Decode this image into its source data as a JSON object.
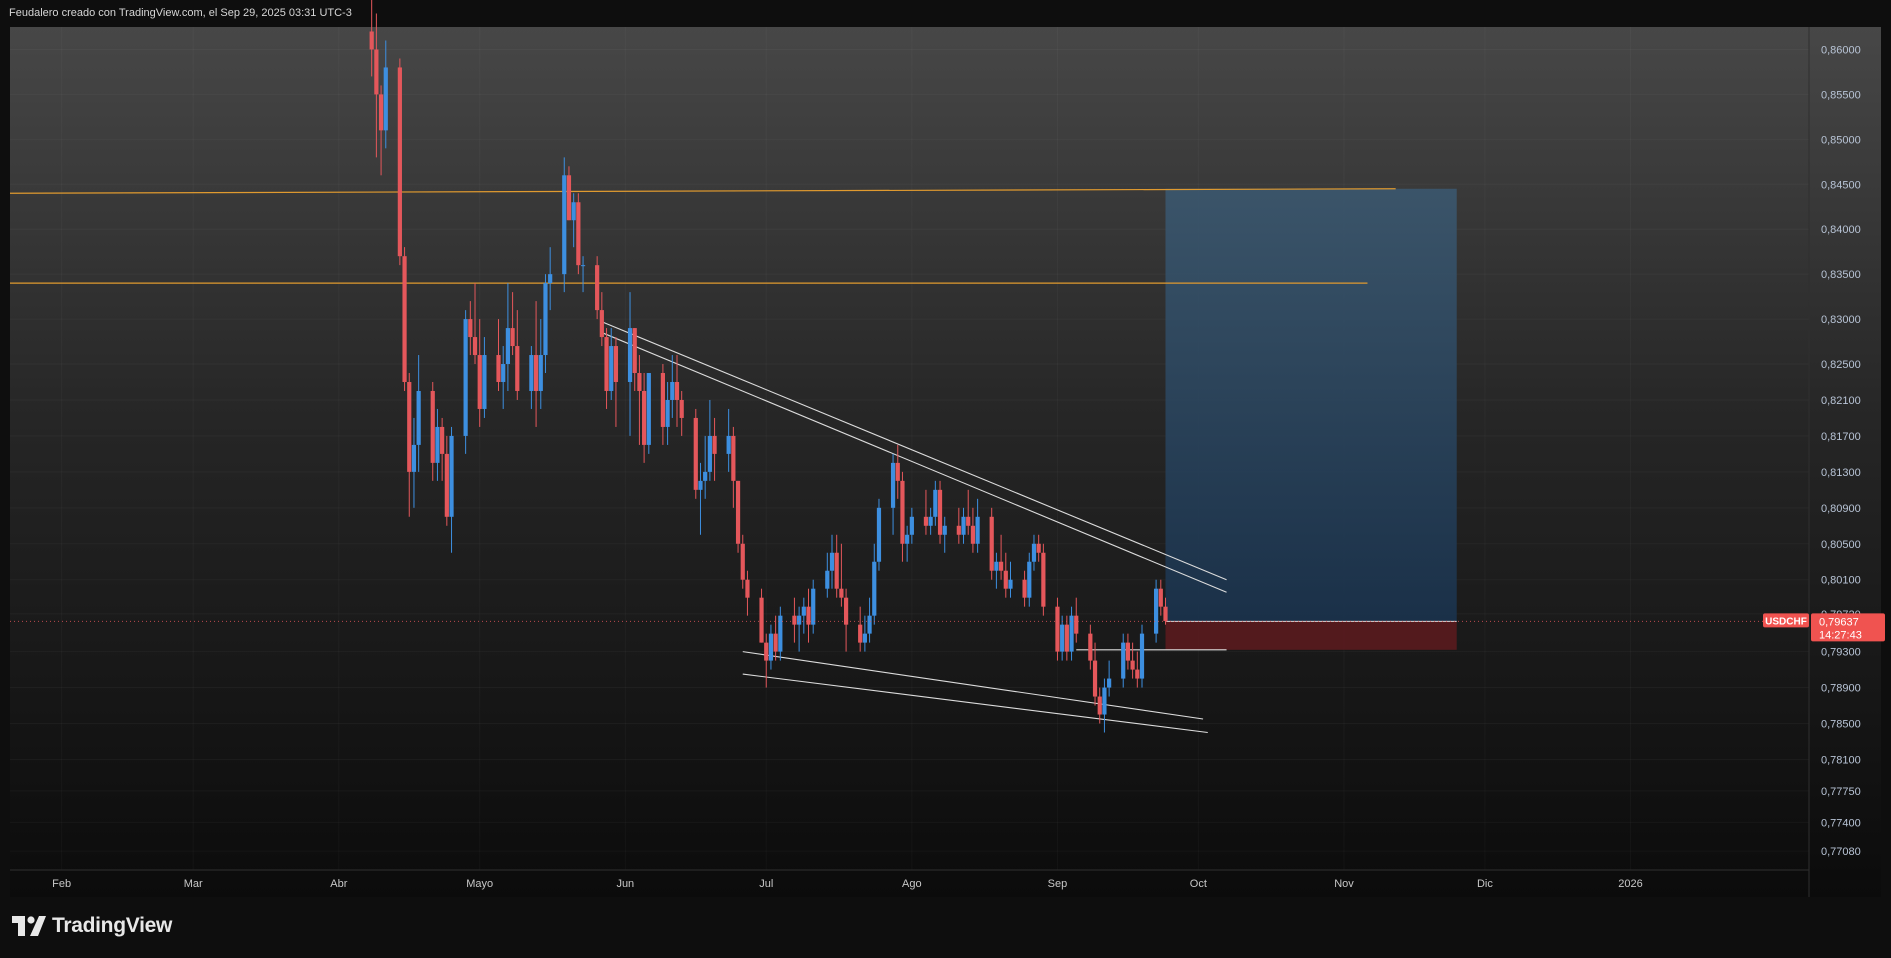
{
  "header": {
    "title": "Feudalero creado con TradingView.com, el Sep 29, 2025 03:31 UTC-3"
  },
  "branding": {
    "logo_text": "TradingView"
  },
  "colors": {
    "up": "#3d8fe0",
    "down": "#e4575b",
    "horizontal_lines": "#e09a2f",
    "trendlines": "#dcdcdc",
    "target_zone": "#2f4d68",
    "stop_zone": "#5a1b1e",
    "price_label_bg": "#f05350"
  },
  "chart_data": {
    "type": "candlestick",
    "symbol": "USDCHF",
    "last_price": "0,79637",
    "countdown": "14:27:43",
    "y_ticks": [
      "0,86000",
      "0,85500",
      "0,85000",
      "0,84500",
      "0,84000",
      "0,83500",
      "0,83000",
      "0,82500",
      "0,82100",
      "0,81700",
      "0,81300",
      "0,80900",
      "0,80500",
      "0,80100",
      "0,79720",
      "0,79300",
      "0,78900",
      "0,78500",
      "0,78100",
      "0,77750",
      "0,77400",
      "0,77080"
    ],
    "x_ticks": [
      "Feb",
      "Mar",
      "Abr",
      "Mayo",
      "Jun",
      "Jul",
      "Ago",
      "Sep",
      "Oct",
      "Nov",
      "Dic",
      "2026"
    ],
    "visible_range": {
      "start": "2025-01-21",
      "end": "2026-02-08",
      "price_low": 0.7687,
      "price_high": 0.8625
    },
    "candles": [
      [
        "2025-04-08",
        0.862,
        0.866,
        0.857,
        0.86
      ],
      [
        "2025-04-09",
        0.86,
        0.864,
        0.848,
        0.855
      ],
      [
        "2025-04-10",
        0.855,
        0.856,
        0.846,
        0.851
      ],
      [
        "2025-04-11",
        0.851,
        0.861,
        0.849,
        0.858
      ],
      [
        "2025-04-14",
        0.858,
        0.859,
        0.836,
        0.837
      ],
      [
        "2025-04-15",
        0.837,
        0.838,
        0.822,
        0.823
      ],
      [
        "2025-04-16",
        0.823,
        0.824,
        0.808,
        0.813
      ],
      [
        "2025-04-17",
        0.813,
        0.819,
        0.809,
        0.816
      ],
      [
        "2025-04-18",
        0.816,
        0.826,
        0.813,
        0.822
      ],
      [
        "2025-04-21",
        0.822,
        0.823,
        0.812,
        0.814
      ],
      [
        "2025-04-22",
        0.814,
        0.82,
        0.812,
        0.818
      ],
      [
        "2025-04-23",
        0.818,
        0.819,
        0.812,
        0.815
      ],
      [
        "2025-04-24",
        0.815,
        0.817,
        0.807,
        0.808
      ],
      [
        "2025-04-25",
        0.808,
        0.818,
        0.804,
        0.817
      ],
      [
        "2025-04-28",
        0.817,
        0.831,
        0.815,
        0.83
      ],
      [
        "2025-04-29",
        0.83,
        0.832,
        0.826,
        0.828
      ],
      [
        "2025-04-30",
        0.828,
        0.834,
        0.825,
        0.826
      ],
      [
        "2025-05-01",
        0.826,
        0.83,
        0.818,
        0.82
      ],
      [
        "2025-05-02",
        0.82,
        0.828,
        0.819,
        0.826
      ],
      [
        "2025-05-05",
        0.826,
        0.83,
        0.822,
        0.823
      ],
      [
        "2025-05-06",
        0.823,
        0.827,
        0.82,
        0.825
      ],
      [
        "2025-05-07",
        0.825,
        0.834,
        0.822,
        0.829
      ],
      [
        "2025-05-08",
        0.829,
        0.833,
        0.826,
        0.827
      ],
      [
        "2025-05-09",
        0.827,
        0.831,
        0.821,
        0.822
      ],
      [
        "2025-05-12",
        0.822,
        0.827,
        0.82,
        0.826
      ],
      [
        "2025-05-13",
        0.826,
        0.832,
        0.818,
        0.822
      ],
      [
        "2025-05-14",
        0.822,
        0.83,
        0.82,
        0.826
      ],
      [
        "2025-05-15",
        0.826,
        0.835,
        0.824,
        0.834
      ],
      [
        "2025-05-16",
        0.834,
        0.838,
        0.831,
        0.835
      ],
      [
        "2025-05-19",
        0.835,
        0.848,
        0.833,
        0.846
      ],
      [
        "2025-05-20",
        0.846,
        0.847,
        0.841,
        0.841
      ],
      [
        "2025-05-21",
        0.841,
        0.844,
        0.838,
        0.843
      ],
      [
        "2025-05-22",
        0.843,
        0.844,
        0.835,
        0.836
      ],
      [
        "2025-05-23",
        0.836,
        0.837,
        0.833,
        0.836
      ],
      [
        "2025-05-26",
        0.836,
        0.837,
        0.83,
        0.831
      ],
      [
        "2025-05-27",
        0.831,
        0.833,
        0.827,
        0.828
      ],
      [
        "2025-05-28",
        0.828,
        0.829,
        0.82,
        0.822
      ],
      [
        "2025-05-29",
        0.822,
        0.829,
        0.821,
        0.827
      ],
      [
        "2025-05-30",
        0.827,
        0.828,
        0.818,
        0.823
      ],
      [
        "2025-06-02",
        0.823,
        0.833,
        0.817,
        0.829
      ],
      [
        "2025-06-03",
        0.829,
        0.829,
        0.822,
        0.824
      ],
      [
        "2025-06-04",
        0.824,
        0.826,
        0.816,
        0.822
      ],
      [
        "2025-06-05",
        0.822,
        0.824,
        0.814,
        0.816
      ],
      [
        "2025-06-06",
        0.816,
        0.824,
        0.815,
        0.824
      ],
      [
        "2025-06-09",
        0.824,
        0.825,
        0.816,
        0.818
      ],
      [
        "2025-06-10",
        0.818,
        0.823,
        0.816,
        0.821
      ],
      [
        "2025-06-11",
        0.821,
        0.826,
        0.819,
        0.823
      ],
      [
        "2025-06-12",
        0.823,
        0.826,
        0.818,
        0.821
      ],
      [
        "2025-06-13",
        0.821,
        0.822,
        0.817,
        0.819
      ],
      [
        "2025-06-16",
        0.819,
        0.82,
        0.81,
        0.811
      ],
      [
        "2025-06-17",
        0.811,
        0.814,
        0.806,
        0.812
      ],
      [
        "2025-06-18",
        0.812,
        0.817,
        0.81,
        0.813
      ],
      [
        "2025-06-19",
        0.813,
        0.821,
        0.812,
        0.817
      ],
      [
        "2025-06-20",
        0.817,
        0.819,
        0.812,
        0.815
      ],
      [
        "2025-06-23",
        0.815,
        0.82,
        0.813,
        0.817
      ],
      [
        "2025-06-24",
        0.817,
        0.818,
        0.809,
        0.812
      ],
      [
        "2025-06-25",
        0.812,
        0.812,
        0.804,
        0.805
      ],
      [
        "2025-06-26",
        0.805,
        0.806,
        0.8,
        0.801
      ],
      [
        "2025-06-27",
        0.801,
        0.802,
        0.797,
        0.799
      ],
      [
        "2025-06-30",
        0.799,
        0.8,
        0.794,
        0.794
      ],
      [
        "2025-07-01",
        0.794,
        0.795,
        0.789,
        0.792
      ],
      [
        "2025-07-02",
        0.792,
        0.796,
        0.791,
        0.795
      ],
      [
        "2025-07-03",
        0.795,
        0.797,
        0.792,
        0.793
      ],
      [
        "2025-07-04",
        0.793,
        0.798,
        0.792,
        0.797
      ],
      [
        "2025-07-07",
        0.797,
        0.799,
        0.794,
        0.796
      ],
      [
        "2025-07-08",
        0.796,
        0.798,
        0.793,
        0.797
      ],
      [
        "2025-07-09",
        0.797,
        0.799,
        0.795,
        0.798
      ],
      [
        "2025-07-10",
        0.798,
        0.8,
        0.794,
        0.796
      ],
      [
        "2025-07-11",
        0.796,
        0.801,
        0.795,
        0.8
      ],
      [
        "2025-07-14",
        0.8,
        0.804,
        0.799,
        0.802
      ],
      [
        "2025-07-15",
        0.802,
        0.806,
        0.8,
        0.804
      ],
      [
        "2025-07-16",
        0.804,
        0.806,
        0.799,
        0.8
      ],
      [
        "2025-07-17",
        0.8,
        0.805,
        0.798,
        0.799
      ],
      [
        "2025-07-18",
        0.799,
        0.8,
        0.793,
        0.796
      ],
      [
        "2025-07-21",
        0.796,
        0.798,
        0.793,
        0.794
      ],
      [
        "2025-07-22",
        0.794,
        0.797,
        0.793,
        0.795
      ],
      [
        "2025-07-23",
        0.795,
        0.799,
        0.794,
        0.797
      ],
      [
        "2025-07-24",
        0.797,
        0.805,
        0.796,
        0.803
      ],
      [
        "2025-07-25",
        0.803,
        0.81,
        0.802,
        0.809
      ],
      [
        "2025-07-28",
        0.809,
        0.815,
        0.806,
        0.814
      ],
      [
        "2025-07-29",
        0.814,
        0.816,
        0.81,
        0.812
      ],
      [
        "2025-07-30",
        0.812,
        0.813,
        0.803,
        0.805
      ],
      [
        "2025-07-31",
        0.805,
        0.807,
        0.803,
        0.806
      ],
      [
        "2025-08-01",
        0.806,
        0.809,
        0.805,
        0.808
      ],
      [
        "2025-08-04",
        0.808,
        0.811,
        0.806,
        0.807
      ],
      [
        "2025-08-05",
        0.807,
        0.809,
        0.806,
        0.808
      ],
      [
        "2025-08-06",
        0.808,
        0.812,
        0.807,
        0.811
      ],
      [
        "2025-08-07",
        0.811,
        0.812,
        0.805,
        0.806
      ],
      [
        "2025-08-08",
        0.806,
        0.808,
        0.804,
        0.807
      ],
      [
        "2025-08-11",
        0.807,
        0.809,
        0.805,
        0.806
      ],
      [
        "2025-08-12",
        0.806,
        0.809,
        0.805,
        0.808
      ],
      [
        "2025-08-13",
        0.808,
        0.811,
        0.806,
        0.807
      ],
      [
        "2025-08-14",
        0.807,
        0.809,
        0.804,
        0.805
      ],
      [
        "2025-08-15",
        0.805,
        0.81,
        0.804,
        0.808
      ],
      [
        "2025-08-18",
        0.808,
        0.809,
        0.801,
        0.802
      ],
      [
        "2025-08-19",
        0.802,
        0.804,
        0.8,
        0.803
      ],
      [
        "2025-08-20",
        0.803,
        0.806,
        0.801,
        0.802
      ],
      [
        "2025-08-21",
        0.802,
        0.804,
        0.799,
        0.8
      ],
      [
        "2025-08-22",
        0.8,
        0.803,
        0.799,
        0.801
      ],
      [
        "2025-08-25",
        0.801,
        0.802,
        0.798,
        0.799
      ],
      [
        "2025-08-26",
        0.799,
        0.804,
        0.798,
        0.803
      ],
      [
        "2025-08-27",
        0.803,
        0.806,
        0.802,
        0.805
      ],
      [
        "2025-08-28",
        0.805,
        0.806,
        0.803,
        0.804
      ],
      [
        "2025-08-29",
        0.804,
        0.805,
        0.797,
        0.798
      ],
      [
        "2025-09-01",
        0.798,
        0.799,
        0.792,
        0.793
      ],
      [
        "2025-09-02",
        0.793,
        0.797,
        0.792,
        0.796
      ],
      [
        "2025-09-03",
        0.796,
        0.797,
        0.792,
        0.793
      ],
      [
        "2025-09-04",
        0.793,
        0.798,
        0.792,
        0.797
      ],
      [
        "2025-09-05",
        0.797,
        0.799,
        0.794,
        0.795
      ],
      [
        "2025-09-08",
        0.795,
        0.796,
        0.791,
        0.792
      ],
      [
        "2025-09-09",
        0.792,
        0.794,
        0.787,
        0.788
      ],
      [
        "2025-09-10",
        0.788,
        0.789,
        0.785,
        0.786
      ],
      [
        "2025-09-11",
        0.786,
        0.79,
        0.784,
        0.789
      ],
      [
        "2025-09-12",
        0.789,
        0.792,
        0.788,
        0.79
      ],
      [
        "2025-09-15",
        0.79,
        0.795,
        0.789,
        0.794
      ],
      [
        "2025-09-16",
        0.794,
        0.795,
        0.791,
        0.792
      ],
      [
        "2025-09-17",
        0.792,
        0.794,
        0.79,
        0.791
      ],
      [
        "2025-09-18",
        0.791,
        0.793,
        0.789,
        0.79
      ],
      [
        "2025-09-19",
        0.79,
        0.796,
        0.789,
        0.795
      ],
      [
        "2025-09-22",
        0.795,
        0.801,
        0.794,
        0.8
      ],
      [
        "2025-09-23",
        0.8,
        0.801,
        0.797,
        0.798
      ],
      [
        "2025-09-24",
        0.798,
        0.799,
        0.796,
        0.7964
      ]
    ],
    "horizontal_lines": [
      {
        "start": "2025-01-21",
        "end": "2025-11-12",
        "price": 0.844,
        "price_end": 0.8445
      },
      {
        "start": "2025-01-21",
        "end": "2025-11-06",
        "price": 0.834
      }
    ],
    "trendlines": [
      {
        "start": "2025-05-27",
        "start_price": 0.8297,
        "end": "2025-10-07",
        "end_price": 0.801
      },
      {
        "start": "2025-05-27",
        "start_price": 0.8285,
        "end": "2025-10-07",
        "end_price": 0.7996
      },
      {
        "start": "2025-06-26",
        "start_price": 0.793,
        "end": "2025-10-02",
        "end_price": 0.7855
      },
      {
        "start": "2025-06-26",
        "start_price": 0.7905,
        "end": "2025-10-03",
        "end_price": 0.784
      },
      {
        "start": "2025-09-05",
        "start_price": 0.7932,
        "end": "2025-10-07",
        "end_price": 0.7932
      }
    ],
    "position": {
      "type": "long",
      "start": "2025-09-24",
      "end": "2025-11-25",
      "entry": 0.79637,
      "target": 0.8445,
      "stop": 0.7932
    }
  }
}
